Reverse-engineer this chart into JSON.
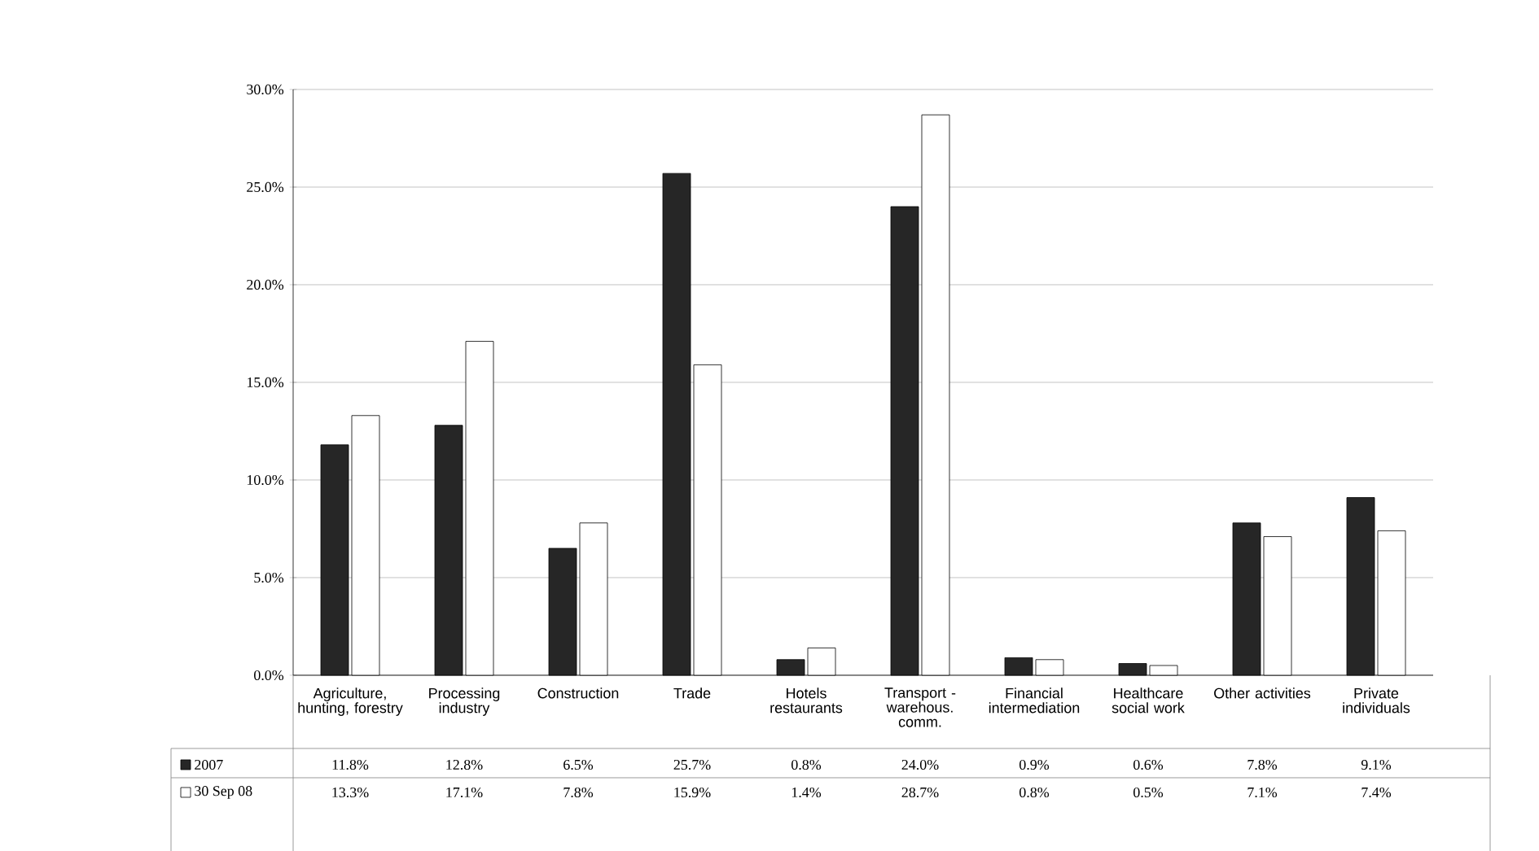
{
  "chart_data": {
    "type": "bar",
    "categories": [
      "Agriculture, hunting, forestry",
      "Processing industry",
      "Construction",
      "Trade",
      "Hotels restaurants",
      "Transport - warehous. comm.",
      "Financial intermediation",
      "Healthcare social work",
      "Other activities",
      "Private individuals"
    ],
    "series": [
      {
        "name": "2007",
        "color": "#262626",
        "values": [
          11.8,
          12.8,
          6.5,
          25.7,
          0.8,
          24.0,
          0.9,
          0.6,
          7.8,
          9.1
        ],
        "value_labels": [
          "11.8%",
          "12.8%",
          "6.5%",
          "25.7%",
          "0.8%",
          "24.0%",
          "0.9%",
          "0.6%",
          "7.8%",
          "9.1%"
        ]
      },
      {
        "name": "30 Sep 08",
        "color": "#ffffff",
        "values": [
          13.3,
          17.1,
          7.8,
          15.9,
          1.4,
          28.7,
          0.8,
          0.5,
          7.1,
          7.4
        ],
        "value_labels": [
          "13.3%",
          "17.1%",
          "7.8%",
          "15.9%",
          "1.4%",
          "28.7%",
          "0.8%",
          "0.5%",
          "7.1%",
          "7.4%"
        ]
      }
    ],
    "ylim": [
      0,
      30
    ],
    "yticks": [
      {
        "value": 0,
        "label": "0.0%"
      },
      {
        "value": 5,
        "label": "5.0%"
      },
      {
        "value": 10,
        "label": "10.0%"
      },
      {
        "value": 15,
        "label": "15.0%"
      },
      {
        "value": 20,
        "label": "20.0%"
      },
      {
        "value": 25,
        "label": "25.0%"
      },
      {
        "value": 30,
        "label": "30.0%"
      }
    ],
    "grid": "y",
    "legend": "bottom left"
  }
}
